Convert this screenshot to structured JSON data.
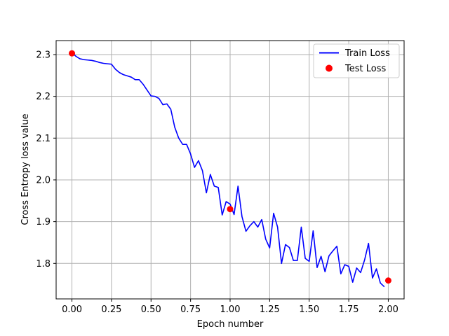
{
  "chart_data": {
    "type": "line",
    "title": "",
    "xlabel": "Epoch number",
    "ylabel": "Cross Entropy loss value",
    "xlim": [
      -0.1,
      2.1
    ],
    "ylim": [
      1.715,
      2.3335
    ],
    "xticks": [
      0.0,
      0.25,
      0.5,
      0.75,
      1.0,
      1.25,
      1.5,
      1.75,
      2.0
    ],
    "xtick_labels": [
      "0.00",
      "0.25",
      "0.50",
      "0.75",
      "1.00",
      "1.25",
      "1.50",
      "1.75",
      "2.00"
    ],
    "yticks": [
      1.8,
      1.9,
      2.0,
      2.1,
      2.2,
      2.3
    ],
    "ytick_labels": [
      "1.8",
      "1.9",
      "2.0",
      "2.1",
      "2.2",
      "2.3"
    ],
    "grid": true,
    "legend_position": "top-right",
    "series": [
      {
        "name": "Train Loss",
        "kind": "line",
        "color": "#0000ff",
        "x": [
          0.0,
          0.025,
          0.05,
          0.075,
          0.1,
          0.125,
          0.15,
          0.175,
          0.2,
          0.225,
          0.25,
          0.275,
          0.3,
          0.325,
          0.35,
          0.375,
          0.4,
          0.425,
          0.45,
          0.475,
          0.5,
          0.525,
          0.55,
          0.575,
          0.6,
          0.625,
          0.65,
          0.675,
          0.7,
          0.725,
          0.75,
          0.775,
          0.8,
          0.825,
          0.85,
          0.875,
          0.9,
          0.925,
          0.95,
          0.975,
          1.0,
          1.025,
          1.05,
          1.075,
          1.1,
          1.125,
          1.15,
          1.175,
          1.2,
          1.225,
          1.25,
          1.275,
          1.3,
          1.325,
          1.35,
          1.375,
          1.4,
          1.425,
          1.45,
          1.475,
          1.5,
          1.525,
          1.55,
          1.575,
          1.6,
          1.625,
          1.65,
          1.675,
          1.7,
          1.725,
          1.75,
          1.775,
          1.8,
          1.825,
          1.85,
          1.875,
          1.9,
          1.925,
          1.95,
          1.975,
          2.0
        ],
        "y": [
          2.305,
          2.296,
          2.29,
          2.288,
          2.287,
          2.286,
          2.284,
          2.281,
          2.279,
          2.278,
          2.277,
          2.265,
          2.257,
          2.252,
          2.249,
          2.246,
          2.24,
          2.24,
          2.229,
          2.215,
          2.201,
          2.2,
          2.195,
          2.18,
          2.182,
          2.169,
          2.126,
          2.1,
          2.085,
          2.085,
          2.062,
          2.03,
          2.046,
          2.022,
          1.969,
          2.013,
          1.985,
          1.982,
          1.916,
          1.948,
          1.942,
          1.917,
          1.985,
          1.912,
          1.877,
          1.89,
          1.9,
          1.887,
          1.905,
          1.858,
          1.837,
          1.92,
          1.887,
          1.8,
          1.845,
          1.838,
          1.807,
          1.807,
          1.887,
          1.812,
          1.805,
          1.878,
          1.79,
          1.817,
          1.78,
          1.818,
          1.83,
          1.841,
          1.775,
          1.797,
          1.793,
          1.755,
          1.789,
          1.778,
          1.808,
          1.848,
          1.765,
          1.787,
          1.753,
          1.744,
          null
        ]
      },
      {
        "name": "Test Loss",
        "kind": "scatter",
        "color": "#ff0000",
        "x": [
          0.0,
          1.0,
          2.0
        ],
        "y": [
          2.303,
          1.93,
          1.759
        ]
      }
    ]
  }
}
